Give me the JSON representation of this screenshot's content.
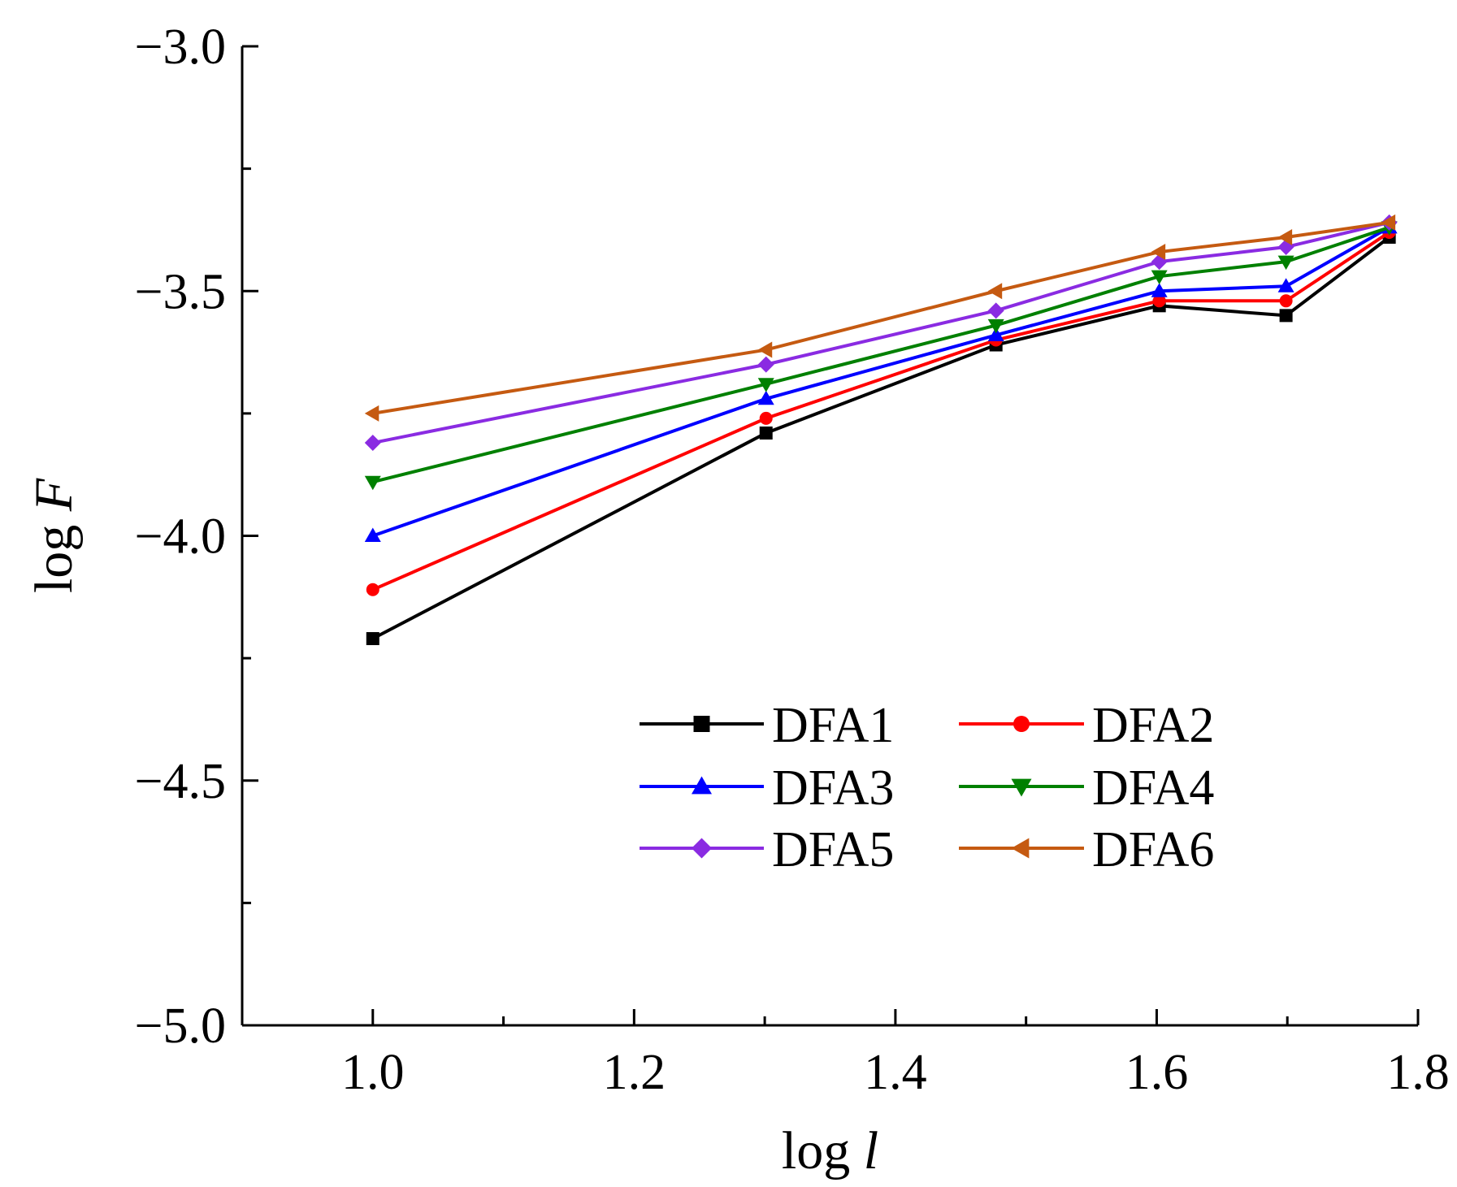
{
  "chart_data": {
    "type": "line",
    "title": "",
    "xlabel_prefix": "log ",
    "xlabel_var": "l",
    "ylabel_prefix": "log ",
    "ylabel_var": "F",
    "xlim": [
      0.9,
      1.8
    ],
    "ylim": [
      -5.0,
      -3.0
    ],
    "x_ticks": [
      1.0,
      1.2,
      1.4,
      1.6,
      1.8
    ],
    "x_tick_labels": [
      "1.0",
      "1.2",
      "1.4",
      "1.6",
      "1.8"
    ],
    "x_minor_ticks": [
      1.1,
      1.3,
      1.5,
      1.7
    ],
    "y_ticks": [
      -3.0,
      -3.5,
      -4.0,
      -4.5,
      -5.0
    ],
    "y_tick_labels": [
      "−3.0",
      "−3.5",
      "−4.0",
      "−4.5",
      "−5.0"
    ],
    "y_minor_ticks": [
      -3.25,
      -3.75,
      -4.25,
      -4.75
    ],
    "legend_position": "lower-right",
    "x": [
      1.0,
      1.301,
      1.477,
      1.602,
      1.699,
      1.778
    ],
    "series": [
      {
        "name": "DFA1",
        "color": "#000000",
        "marker": "square",
        "values": [
          -4.21,
          -3.79,
          -3.61,
          -3.53,
          -3.55,
          -3.39
        ]
      },
      {
        "name": "DFA2",
        "color": "#ff0000",
        "marker": "circle",
        "values": [
          -4.11,
          -3.76,
          -3.6,
          -3.52,
          -3.52,
          -3.38
        ]
      },
      {
        "name": "DFA3",
        "color": "#0000ff",
        "marker": "triangle-up",
        "values": [
          -4.0,
          -3.72,
          -3.59,
          -3.5,
          -3.49,
          -3.37
        ]
      },
      {
        "name": "DFA4",
        "color": "#008000",
        "marker": "triangle-down",
        "values": [
          -3.89,
          -3.69,
          -3.57,
          -3.47,
          -3.44,
          -3.37
        ]
      },
      {
        "name": "DFA5",
        "color": "#8a2be2",
        "marker": "diamond",
        "values": [
          -3.81,
          -3.65,
          -3.54,
          -3.44,
          -3.41,
          -3.36
        ]
      },
      {
        "name": "DFA6",
        "color": "#c55a11",
        "marker": "triangle-left",
        "values": [
          -3.75,
          -3.62,
          -3.5,
          -3.42,
          -3.39,
          -3.36
        ]
      }
    ]
  }
}
